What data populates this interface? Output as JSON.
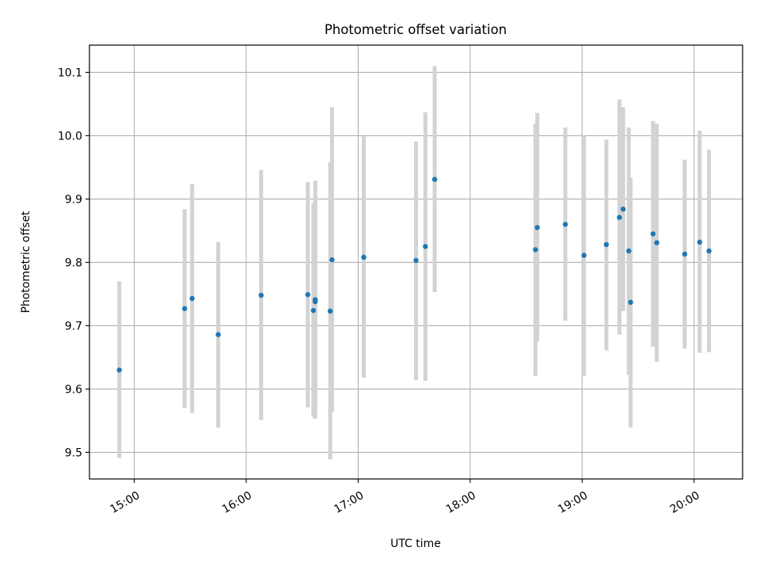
{
  "chart_data": {
    "type": "scatter",
    "title": "Photometric offset variation",
    "xlabel": "UTC time",
    "ylabel": "Photometric offset",
    "x_axis_type": "time",
    "xlim": [
      "14:36",
      "20:26"
    ],
    "ylim": [
      9.458,
      10.143
    ],
    "x_ticks": [
      {
        "value": "15:00",
        "label": "15:00"
      },
      {
        "value": "16:00",
        "label": "16:00"
      },
      {
        "value": "17:00",
        "label": "17:00"
      },
      {
        "value": "18:00",
        "label": "18:00"
      },
      {
        "value": "19:00",
        "label": "19:00"
      },
      {
        "value": "20:00",
        "label": "20:00"
      }
    ],
    "y_ticks": [
      {
        "value": 9.5,
        "label": "9.5"
      },
      {
        "value": 9.6,
        "label": "9.6"
      },
      {
        "value": 9.7,
        "label": "9.7"
      },
      {
        "value": 9.8,
        "label": "9.8"
      },
      {
        "value": 9.9,
        "label": "9.9"
      },
      {
        "value": 10.0,
        "label": "10.0"
      },
      {
        "value": 10.1,
        "label": "10.1"
      }
    ],
    "grid": true,
    "marker_color": "#1f77b4",
    "errorbar_color": "#d3d3d3",
    "points": [
      {
        "x": "14:52",
        "y": 9.63,
        "err_low": 9.491,
        "err_high": 9.77
      },
      {
        "x": "15:27",
        "y": 9.727,
        "err_low": 9.57,
        "err_high": 9.884
      },
      {
        "x": "15:31",
        "y": 9.743,
        "err_low": 9.562,
        "err_high": 9.924
      },
      {
        "x": "15:45",
        "y": 9.686,
        "err_low": 9.539,
        "err_high": 9.832
      },
      {
        "x": "16:08",
        "y": 9.748,
        "err_low": 9.551,
        "err_high": 9.946
      },
      {
        "x": "16:33",
        "y": 9.749,
        "err_low": 9.571,
        "err_high": 9.927
      },
      {
        "x": "16:36",
        "y": 9.724,
        "err_low": 9.556,
        "err_high": 9.893
      },
      {
        "x": "16:37",
        "y": 9.738,
        "err_low": 9.553,
        "err_high": 9.929
      },
      {
        "x": "16:37",
        "y": 9.741,
        "err_low": 9.572,
        "err_high": 9.9
      },
      {
        "x": "16:45",
        "y": 9.723,
        "err_low": 9.489,
        "err_high": 9.958
      },
      {
        "x": "16:46",
        "y": 9.804,
        "err_low": 9.564,
        "err_high": 10.045
      },
      {
        "x": "17:03",
        "y": 9.808,
        "err_low": 9.618,
        "err_high": 9.999
      },
      {
        "x": "17:31",
        "y": 9.803,
        "err_low": 9.614,
        "err_high": 9.991
      },
      {
        "x": "17:36",
        "y": 9.825,
        "err_low": 9.613,
        "err_high": 10.037
      },
      {
        "x": "17:41",
        "y": 9.931,
        "err_low": 9.753,
        "err_high": 10.11
      },
      {
        "x": "18:35",
        "y": 9.82,
        "err_low": 9.621,
        "err_high": 10.019
      },
      {
        "x": "18:36",
        "y": 9.855,
        "err_low": 9.675,
        "err_high": 10.036
      },
      {
        "x": "18:51",
        "y": 9.86,
        "err_low": 9.708,
        "err_high": 10.013
      },
      {
        "x": "19:01",
        "y": 9.811,
        "err_low": 9.621,
        "err_high": 10.001
      },
      {
        "x": "19:13",
        "y": 9.828,
        "err_low": 9.661,
        "err_high": 9.994
      },
      {
        "x": "19:20",
        "y": 9.871,
        "err_low": 9.686,
        "err_high": 10.057
      },
      {
        "x": "19:22",
        "y": 9.884,
        "err_low": 9.723,
        "err_high": 10.045
      },
      {
        "x": "19:25",
        "y": 9.818,
        "err_low": 9.622,
        "err_high": 10.013
      },
      {
        "x": "19:26",
        "y": 9.737,
        "err_low": 9.539,
        "err_high": 9.934
      },
      {
        "x": "19:38",
        "y": 9.845,
        "err_low": 9.667,
        "err_high": 10.023
      },
      {
        "x": "19:40",
        "y": 9.831,
        "err_low": 9.643,
        "err_high": 10.019
      },
      {
        "x": "19:55",
        "y": 9.813,
        "err_low": 9.664,
        "err_high": 9.962
      },
      {
        "x": "20:03",
        "y": 9.832,
        "err_low": 9.657,
        "err_high": 10.008
      },
      {
        "x": "20:08",
        "y": 9.818,
        "err_low": 9.658,
        "err_high": 9.978
      }
    ]
  }
}
